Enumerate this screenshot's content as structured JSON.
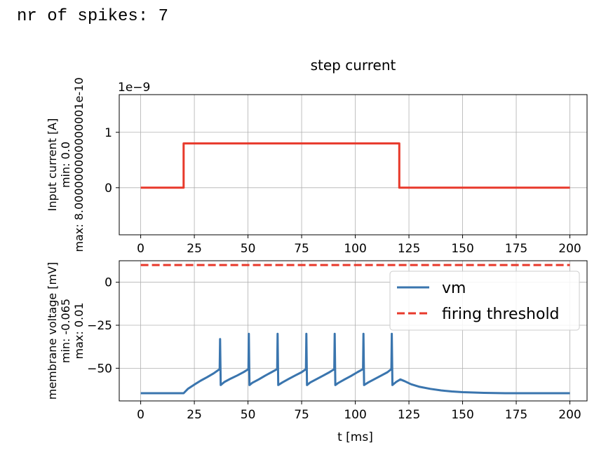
{
  "console_output": "nr of spikes: 7",
  "chart_data": [
    {
      "type": "line",
      "title": "step current",
      "ylabel_lines": [
        "Input current [A]",
        "min: 0.0",
        "max: 8.000000000000001e-10"
      ],
      "xlabel": "",
      "offset_label": "1e−9",
      "xlim": [
        -10,
        208
      ],
      "ylim": [
        -0.85,
        1.68
      ],
      "xticks": [
        0,
        25,
        50,
        75,
        100,
        125,
        150,
        175,
        200
      ],
      "xtick_labels": [
        "0",
        "25",
        "50",
        "75",
        "100",
        "125",
        "150",
        "175",
        "200"
      ],
      "yticks": [
        0,
        1
      ],
      "ytick_labels": [
        "0",
        "1"
      ],
      "grid": true,
      "color": "#e8392b",
      "series": [
        {
          "x": [
            0,
            20,
            20,
            120.5,
            120.5,
            200
          ],
          "y": [
            0,
            0,
            0.8,
            0.8,
            0,
            0
          ]
        }
      ]
    },
    {
      "type": "line",
      "title": "",
      "ylabel_lines": [
        "membrane voltage [mV]",
        "min: -0.065",
        "max: 0.01"
      ],
      "xlabel": "t [ms]",
      "xlim": [
        -10,
        208
      ],
      "ylim": [
        -69,
        12.5
      ],
      "xticks": [
        0,
        25,
        50,
        75,
        100,
        125,
        150,
        175,
        200
      ],
      "xtick_labels": [
        "0",
        "25",
        "50",
        "75",
        "100",
        "125",
        "150",
        "175",
        "200"
      ],
      "yticks": [
        0,
        -25,
        -50
      ],
      "ytick_labels": [
        "0",
        "−25",
        "−50"
      ],
      "grid": true,
      "legend_position": "upper-right",
      "series": [
        {
          "name": "vm",
          "color": "#3a75ae",
          "style": "solid",
          "x": [
            0,
            20,
            22,
            25,
            28,
            31,
            34,
            36.8,
            37,
            37.3,
            39,
            42,
            45,
            48,
            50.2,
            50.4,
            50.7,
            52,
            55,
            58,
            61,
            63.6,
            63.8,
            64.1,
            66,
            69,
            72,
            75,
            77,
            77.2,
            77.5,
            79,
            82,
            85,
            88,
            90.2,
            90.4,
            90.7,
            92,
            95,
            98,
            101,
            103.6,
            103.8,
            104.1,
            106,
            109,
            112,
            115,
            116.8,
            117,
            117.3,
            119,
            121,
            123,
            126,
            130,
            135,
            140,
            145,
            150,
            160,
            170,
            180,
            200
          ],
          "y": [
            -64.5,
            -64.5,
            -62,
            -59.5,
            -57.2,
            -55.2,
            -53,
            -50.5,
            -33,
            -59.8,
            -58,
            -56,
            -54.2,
            -52.2,
            -50.5,
            -30,
            -59.8,
            -58.5,
            -56.5,
            -54.3,
            -52.3,
            -50.5,
            -30,
            -59.8,
            -58.3,
            -56.2,
            -54.2,
            -52.3,
            -50.5,
            -30,
            -59.8,
            -58.3,
            -56.3,
            -54.3,
            -52.3,
            -50.5,
            -30,
            -59.8,
            -58.6,
            -56.5,
            -54.5,
            -52.3,
            -50.5,
            -30,
            -59.8,
            -58.3,
            -56.3,
            -54.3,
            -52.3,
            -50.5,
            -30,
            -59.8,
            -58,
            -56.5,
            -57.5,
            -59.3,
            -60.8,
            -62,
            -62.9,
            -63.5,
            -63.9,
            -64.3,
            -64.5,
            -64.5,
            -64.5
          ]
        },
        {
          "name": "firing threshold",
          "color": "#e8392b",
          "style": "dashed",
          "x": [
            0,
            200
          ],
          "y": [
            10,
            10
          ]
        }
      ]
    }
  ]
}
